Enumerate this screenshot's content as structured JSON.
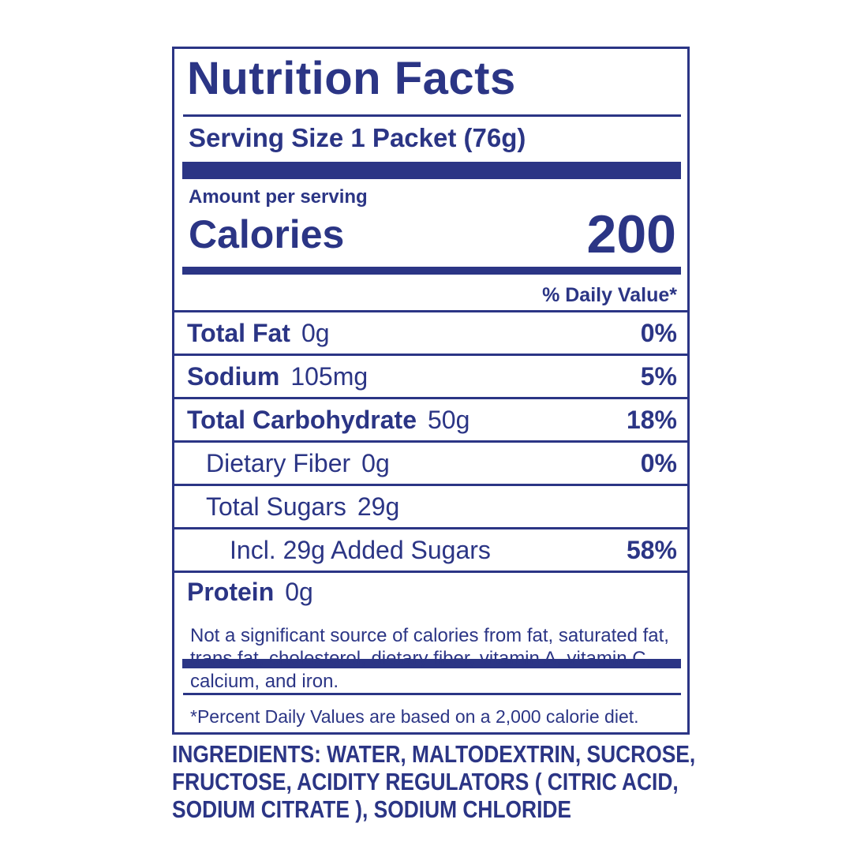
{
  "label": {
    "title": "Nutrition Facts",
    "serving_size": "Serving Size 1 Packet (76g)",
    "amount_per_serving": "Amount per serving",
    "calories_label": "Calories",
    "calories_value": "200",
    "daily_value_header": "% Daily Value*",
    "rows": [
      {
        "label": "Total Fat",
        "value": "0g",
        "dv": "0%"
      },
      {
        "label": "Sodium",
        "value": "105mg",
        "dv": "5%"
      },
      {
        "label": "Total Carbohydrate",
        "value": "50g",
        "dv": "18%"
      },
      {
        "label": "Dietary Fiber",
        "value": "0g",
        "dv": "0%"
      },
      {
        "label": "Total Sugars",
        "value": "29g",
        "dv": ""
      },
      {
        "label": "Incl. 29g Added Sugars",
        "value": "",
        "dv": "58%"
      },
      {
        "label": "Protein",
        "value": "0g",
        "dv": ""
      }
    ],
    "not_significant_note": "Not a significant source of calories from fat, saturated fat, trans fat, cholesterol, dietary fiber, vitamin A, vitamin C, calcium, and iron.",
    "percent_note": "*Percent Daily Values are based on a 2,000 calorie diet."
  },
  "ingredients_text": "INGREDIENTS: WATER, MALTODEXTRIN, SUCROSE,\nFRUCTOSE, ACIDITY REGULATORS ( CITRIC ACID,\nSODIUM CITRATE ), SODIUM CHLORIDE",
  "colors": {
    "navy": "#2b3585",
    "background": "#ffffff"
  }
}
